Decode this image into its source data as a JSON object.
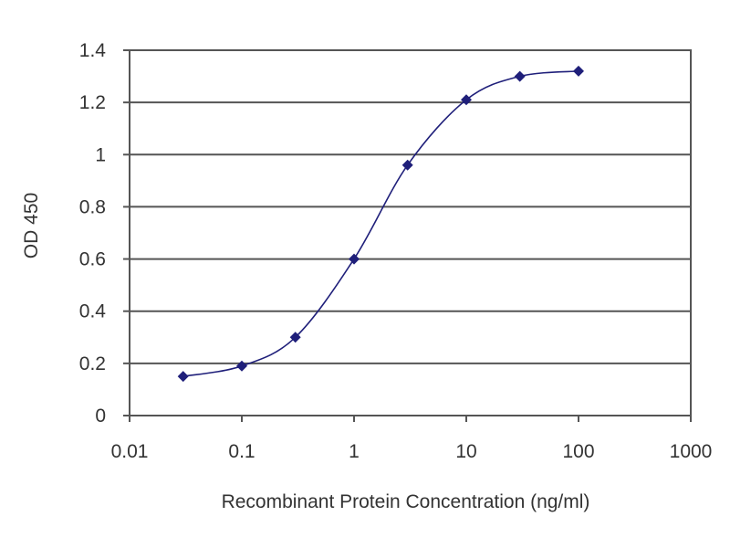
{
  "chart_data": {
    "type": "scatter",
    "title": "",
    "xlabel": "Recombinant Protein Concentration (ng/ml)",
    "ylabel": "OD 450",
    "x_scale": "log",
    "xlim": [
      0.01,
      1000
    ],
    "ylim": [
      0,
      1.4
    ],
    "x_ticks": [
      0.01,
      0.1,
      1,
      10,
      100,
      1000
    ],
    "x_tick_labels": [
      "0.01",
      "0.1",
      "1",
      "10",
      "100",
      "1000"
    ],
    "y_ticks": [
      0,
      0.2,
      0.4,
      0.6,
      0.8,
      1,
      1.2,
      1.4
    ],
    "y_tick_labels": [
      "0",
      "0.2",
      "0.4",
      "0.6",
      "0.8",
      "1",
      "1.2",
      "1.4"
    ],
    "grid": "horizontal",
    "legend": "none",
    "series": [
      {
        "x": [
          0.03,
          0.1,
          0.3,
          1,
          3,
          10,
          30,
          100
        ],
        "y": [
          0.15,
          0.19,
          0.3,
          0.6,
          0.96,
          1.21,
          1.3,
          1.32
        ],
        "fit": "sigmoid"
      }
    ],
    "colors": {
      "series": "#1f1f7a",
      "grid": "#555555",
      "axis": "#555555",
      "plot_bg": "#ffffff"
    }
  }
}
